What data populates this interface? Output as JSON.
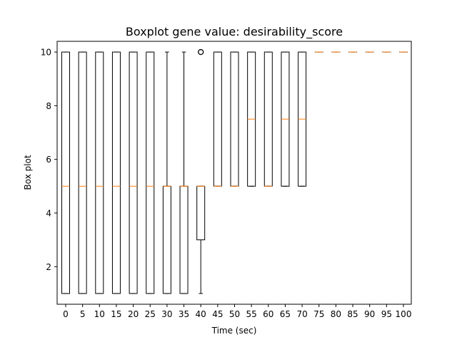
{
  "chart_data": {
    "type": "boxplot",
    "title": "Boxplot gene value: desirability_score",
    "xlabel": "Time (sec)",
    "ylabel": "Box plot",
    "ylim": [
      0.6,
      10.4
    ],
    "yticks": [
      2,
      4,
      6,
      8,
      10
    ],
    "grid": false,
    "colors": {
      "box": "#000000",
      "median": "#ff7f0e",
      "flier": "#000000"
    },
    "boxes": [
      {
        "label": "0",
        "whislo": 1,
        "q1": 1,
        "med": 5,
        "q3": 10,
        "whishi": 10,
        "fliers": []
      },
      {
        "label": "5",
        "whislo": 1,
        "q1": 1,
        "med": 5,
        "q3": 10,
        "whishi": 10,
        "fliers": []
      },
      {
        "label": "10",
        "whislo": 1,
        "q1": 1,
        "med": 5,
        "q3": 10,
        "whishi": 10,
        "fliers": []
      },
      {
        "label": "15",
        "whislo": 1,
        "q1": 1,
        "med": 5,
        "q3": 10,
        "whishi": 10,
        "fliers": []
      },
      {
        "label": "20",
        "whislo": 1,
        "q1": 1,
        "med": 5,
        "q3": 10,
        "whishi": 10,
        "fliers": []
      },
      {
        "label": "25",
        "whislo": 1,
        "q1": 1,
        "med": 5,
        "q3": 10,
        "whishi": 10,
        "fliers": []
      },
      {
        "label": "30",
        "whislo": 1,
        "q1": 1,
        "med": 5,
        "q3": 5,
        "whishi": 10,
        "fliers": []
      },
      {
        "label": "35",
        "whislo": 1,
        "q1": 1,
        "med": 5,
        "q3": 5,
        "whishi": 10,
        "fliers": []
      },
      {
        "label": "40",
        "whislo": 1,
        "q1": 3,
        "med": 5,
        "q3": 5,
        "whishi": 5,
        "fliers": [
          10
        ]
      },
      {
        "label": "45",
        "whislo": 5,
        "q1": 5,
        "med": 5,
        "q3": 10,
        "whishi": 10,
        "fliers": []
      },
      {
        "label": "50",
        "whislo": 5,
        "q1": 5,
        "med": 5,
        "q3": 10,
        "whishi": 10,
        "fliers": []
      },
      {
        "label": "55",
        "whislo": 5,
        "q1": 5,
        "med": 7.5,
        "q3": 10,
        "whishi": 10,
        "fliers": []
      },
      {
        "label": "60",
        "whislo": 5,
        "q1": 5,
        "med": 5,
        "q3": 10,
        "whishi": 10,
        "fliers": []
      },
      {
        "label": "65",
        "whislo": 5,
        "q1": 5,
        "med": 7.5,
        "q3": 10,
        "whishi": 10,
        "fliers": []
      },
      {
        "label": "70",
        "whislo": 5,
        "q1": 5,
        "med": 7.5,
        "q3": 10,
        "whishi": 10,
        "fliers": []
      },
      {
        "label": "75",
        "whislo": 10,
        "q1": 10,
        "med": 10,
        "q3": 10,
        "whishi": 10,
        "fliers": []
      },
      {
        "label": "80",
        "whislo": 10,
        "q1": 10,
        "med": 10,
        "q3": 10,
        "whishi": 10,
        "fliers": []
      },
      {
        "label": "85",
        "whislo": 10,
        "q1": 10,
        "med": 10,
        "q3": 10,
        "whishi": 10,
        "fliers": []
      },
      {
        "label": "90",
        "whislo": 10,
        "q1": 10,
        "med": 10,
        "q3": 10,
        "whishi": 10,
        "fliers": []
      },
      {
        "label": "95",
        "whislo": 10,
        "q1": 10,
        "med": 10,
        "q3": 10,
        "whishi": 10,
        "fliers": []
      },
      {
        "label": "100",
        "whislo": 10,
        "q1": 10,
        "med": 10,
        "q3": 10,
        "whishi": 10,
        "fliers": []
      }
    ]
  }
}
